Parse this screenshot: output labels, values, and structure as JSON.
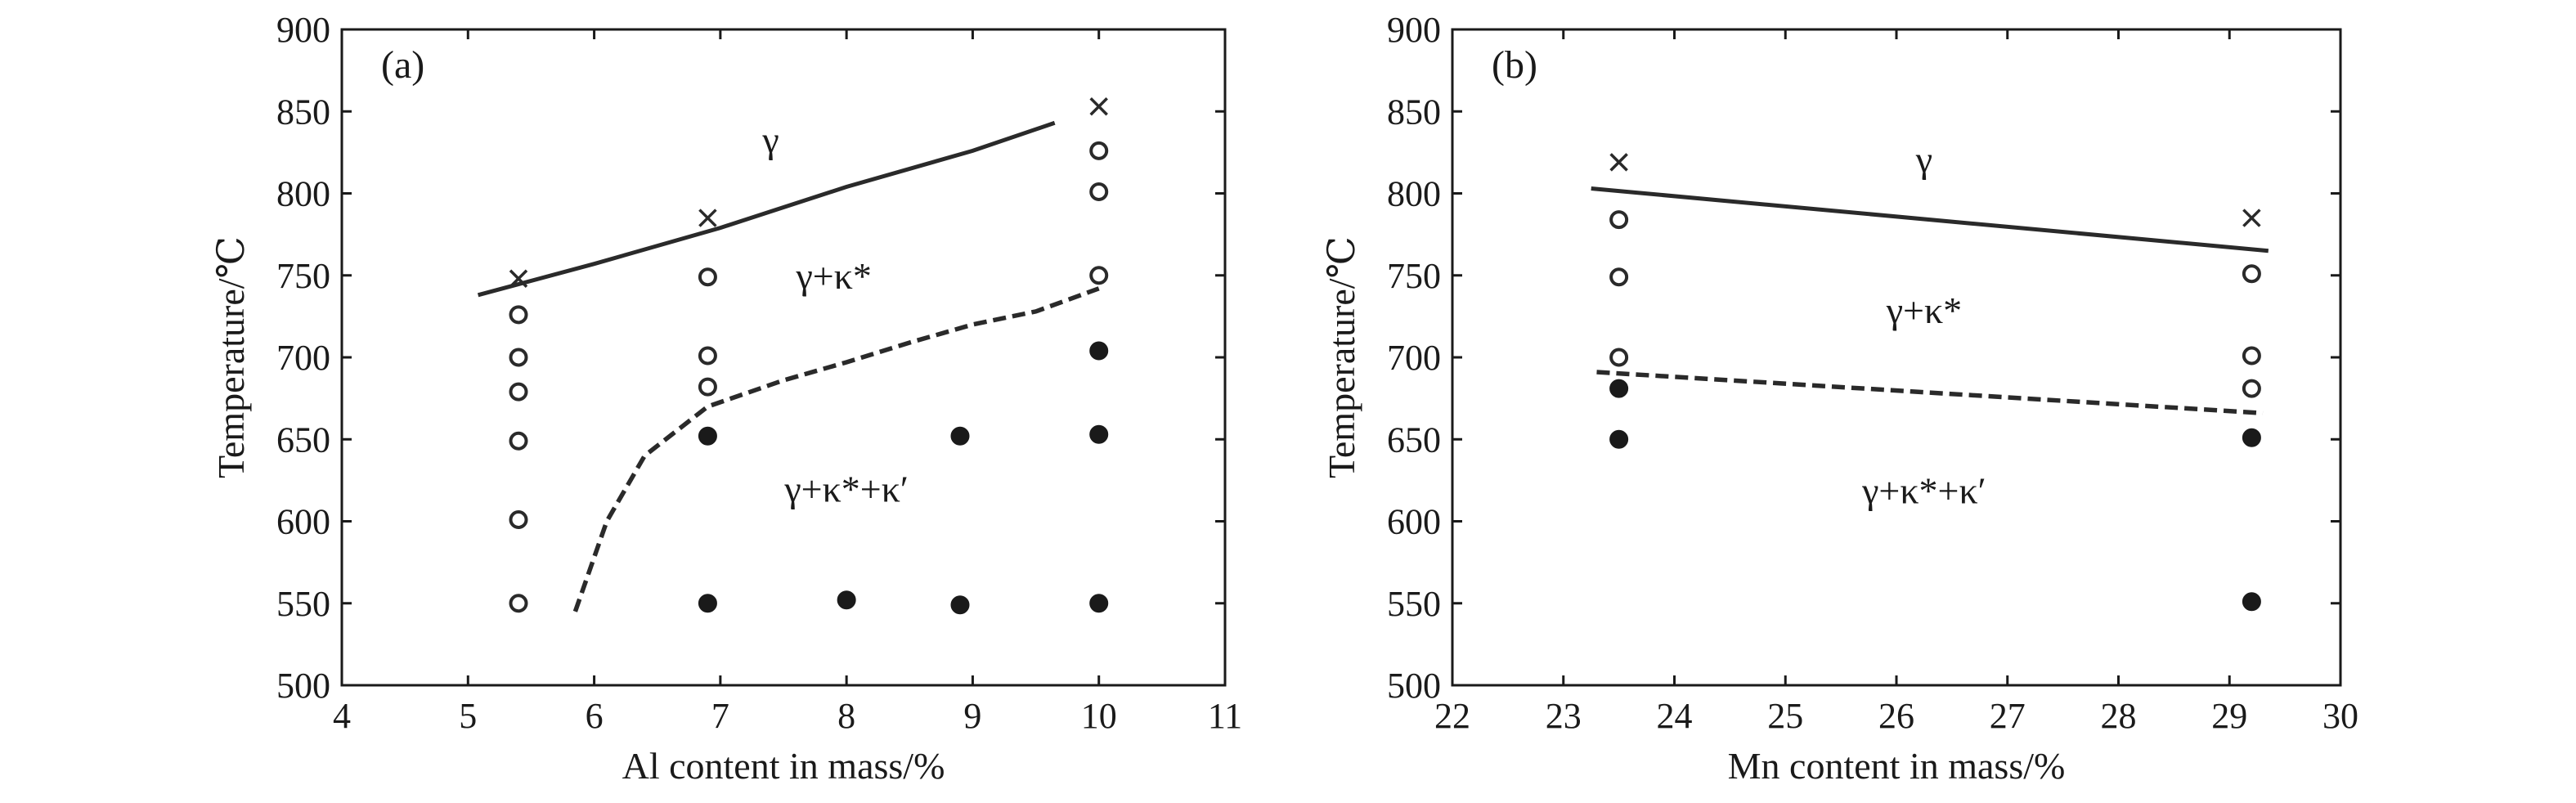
{
  "chart_data": [
    {
      "type": "scatter",
      "panel_label": "(a)",
      "xlabel": "Al content in mass/%",
      "ylabel": "Temperature/℃",
      "xlim": [
        4,
        11
      ],
      "ylim": [
        500,
        900
      ],
      "xticks": [
        4,
        5,
        6,
        7,
        8,
        9,
        10,
        11
      ],
      "yticks": [
        500,
        550,
        600,
        650,
        700,
        750,
        800,
        850,
        900
      ],
      "region_labels": [
        {
          "text": "γ",
          "x": 7.4,
          "y": 825
        },
        {
          "text": "γ+κ*",
          "x": 7.9,
          "y": 742
        },
        {
          "text": "γ+κ*+κ′",
          "x": 8.0,
          "y": 612
        }
      ],
      "solid_boundary": [
        [
          5.08,
          738
        ],
        [
          6.0,
          757
        ],
        [
          7.0,
          779
        ],
        [
          8.0,
          804
        ],
        [
          9.0,
          826
        ],
        [
          9.65,
          843
        ]
      ],
      "dashed_boundary": [
        [
          5.85,
          545
        ],
        [
          6.1,
          600
        ],
        [
          6.4,
          640
        ],
        [
          6.9,
          670
        ],
        [
          7.5,
          686
        ],
        [
          8.0,
          697
        ],
        [
          8.5,
          709
        ],
        [
          9.0,
          720
        ],
        [
          9.5,
          728
        ],
        [
          10.0,
          742
        ]
      ],
      "series": [
        {
          "marker": "cross",
          "points": [
            [
              5.4,
              748
            ],
            [
              6.9,
              785
            ],
            [
              10.0,
              853
            ]
          ]
        },
        {
          "marker": "open-circle",
          "points": [
            [
              5.4,
              726
            ],
            [
              5.4,
              700
            ],
            [
              5.4,
              679
            ],
            [
              5.4,
              649
            ],
            [
              5.4,
              601
            ],
            [
              5.4,
              550
            ],
            [
              6.9,
              749
            ],
            [
              6.9,
              701
            ],
            [
              6.9,
              682
            ],
            [
              10.0,
              826
            ],
            [
              10.0,
              801
            ],
            [
              10.0,
              750
            ]
          ]
        },
        {
          "marker": "filled-circle",
          "points": [
            [
              6.9,
              652
            ],
            [
              6.9,
              550
            ],
            [
              8.0,
              552
            ],
            [
              8.9,
              652
            ],
            [
              8.9,
              549
            ],
            [
              10.0,
              704
            ],
            [
              10.0,
              653
            ],
            [
              10.0,
              550
            ]
          ]
        }
      ]
    },
    {
      "type": "scatter",
      "panel_label": "(b)",
      "xlabel": "Mn content in mass/%",
      "ylabel": "Temperature/℃",
      "xlim": [
        22,
        30
      ],
      "ylim": [
        500,
        900
      ],
      "xticks": [
        22,
        23,
        24,
        25,
        26,
        27,
        28,
        29,
        30
      ],
      "yticks": [
        500,
        550,
        600,
        650,
        700,
        750,
        800,
        850,
        900
      ],
      "region_labels": [
        {
          "text": "γ",
          "x": 26.25,
          "y": 813
        },
        {
          "text": "γ+κ*",
          "x": 26.25,
          "y": 721
        },
        {
          "text": "γ+κ*+κ′",
          "x": 26.25,
          "y": 611
        }
      ],
      "solid_boundary": [
        [
          23.25,
          803
        ],
        [
          29.35,
          765
        ]
      ],
      "dashed_boundary": [
        [
          23.3,
          691
        ],
        [
          29.3,
          666
        ]
      ],
      "series": [
        {
          "marker": "cross",
          "points": [
            [
              23.5,
              819
            ],
            [
              29.2,
              785
            ]
          ]
        },
        {
          "marker": "open-circle",
          "points": [
            [
              23.5,
              784
            ],
            [
              23.5,
              749
            ],
            [
              23.5,
              700
            ],
            [
              29.2,
              751
            ],
            [
              29.2,
              701
            ],
            [
              29.2,
              681
            ]
          ]
        },
        {
          "marker": "filled-circle",
          "points": [
            [
              23.5,
              681
            ],
            [
              23.5,
              650
            ],
            [
              29.2,
              651
            ],
            [
              29.2,
              551
            ]
          ]
        }
      ]
    }
  ]
}
